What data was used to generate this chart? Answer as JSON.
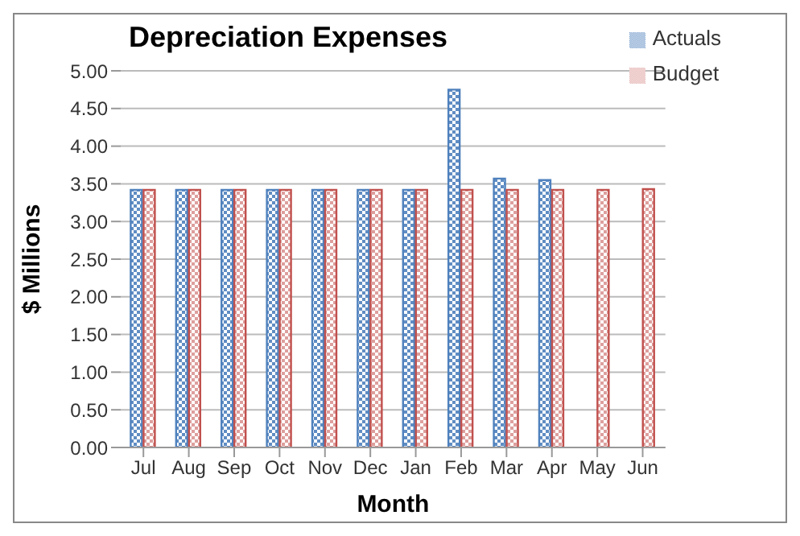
{
  "chart_data": {
    "type": "bar",
    "title": "Depreciation Expenses",
    "xlabel": "Month",
    "ylabel": "$ Millions",
    "categories": [
      "Jul",
      "Aug",
      "Sep",
      "Oct",
      "Nov",
      "Dec",
      "Jan",
      "Feb",
      "Mar",
      "Apr",
      "May",
      "Jun"
    ],
    "series": [
      {
        "name": "Actuals",
        "color": "#4f81bd",
        "values": [
          3.42,
          3.42,
          3.42,
          3.42,
          3.42,
          3.42,
          3.42,
          4.75,
          3.57,
          3.55,
          null,
          null
        ]
      },
      {
        "name": "Budget",
        "color": "#c0504d",
        "values": [
          3.42,
          3.42,
          3.42,
          3.42,
          3.42,
          3.42,
          3.42,
          3.42,
          3.42,
          3.42,
          3.42,
          3.43
        ]
      }
    ],
    "ylim": [
      0,
      5
    ],
    "yticks": [
      {
        "value": 0,
        "label": "0.00"
      },
      {
        "value": 0.5,
        "label": "0.50"
      },
      {
        "value": 1,
        "label": "1.00"
      },
      {
        "value": 1.5,
        "label": "1.50"
      },
      {
        "value": 2,
        "label": "2.00"
      },
      {
        "value": 2.5,
        "label": "2.50"
      },
      {
        "value": 3,
        "label": "3.00"
      },
      {
        "value": 3.5,
        "label": "3.50"
      },
      {
        "value": 4,
        "label": "4.00"
      },
      {
        "value": 4.5,
        "label": "4.50"
      },
      {
        "value": 5,
        "label": "5.00"
      }
    ],
    "grid": "y",
    "legend": "top right"
  }
}
